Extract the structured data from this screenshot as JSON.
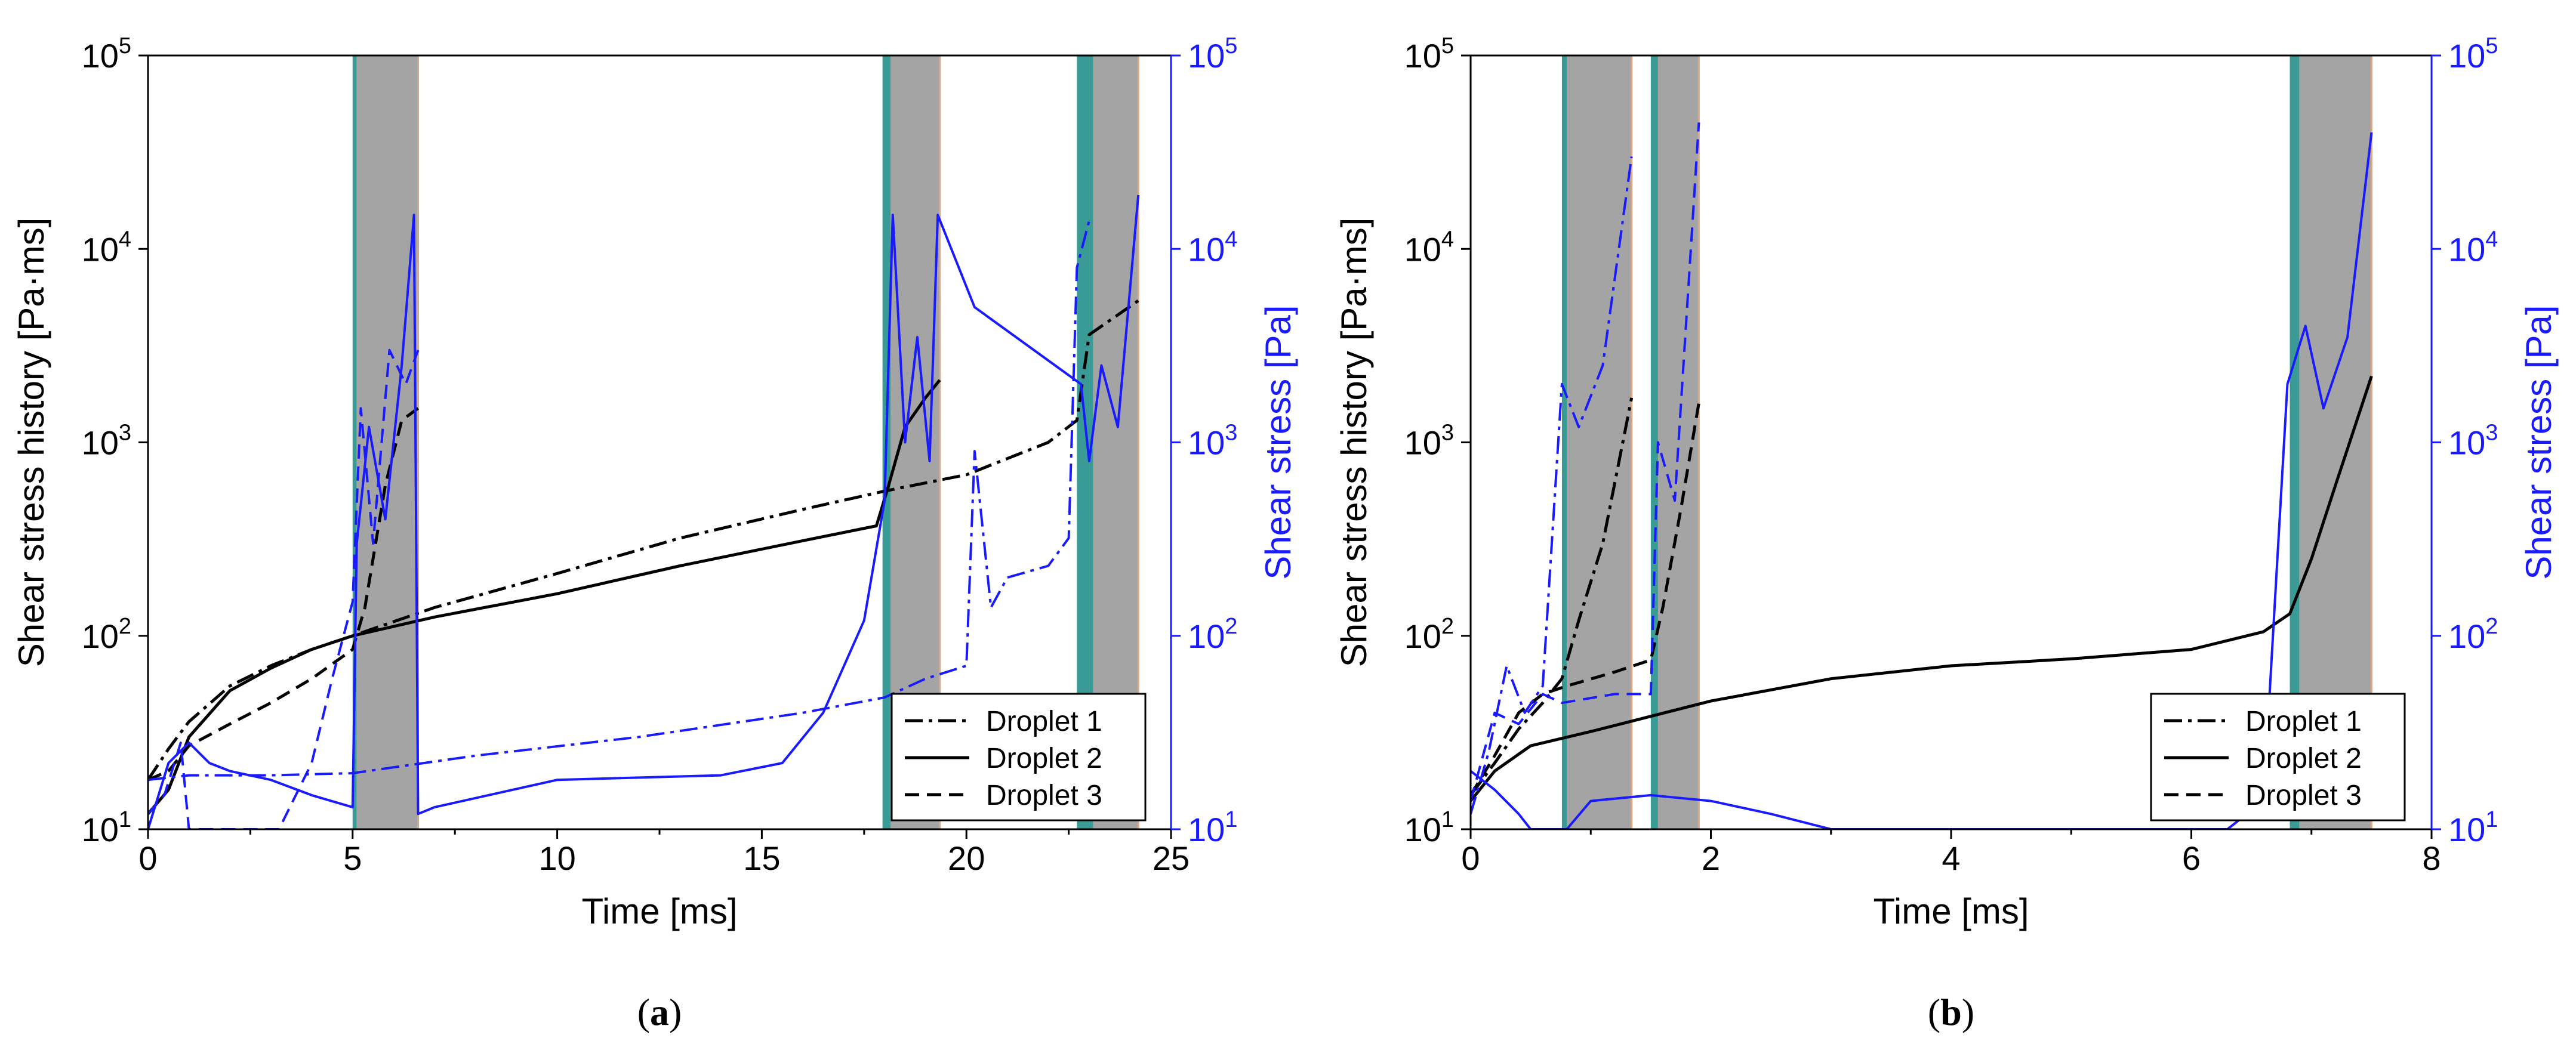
{
  "chart_data": [
    {
      "type": "line",
      "panel_label": "(a)",
      "caption_letter": "a",
      "xlabel": "Time [ms]",
      "ylabel_left": "Shear stress history [Pa·ms]",
      "ylabel_right": "Shear stress [Pa]",
      "xlim": [
        0,
        25
      ],
      "xticks": [
        "0",
        "5",
        "10",
        "15",
        "20",
        "25"
      ],
      "ylim_left": [
        10,
        100000
      ],
      "ylim_right": [
        10,
        100000
      ],
      "scale": "log",
      "left_colors": "#000000",
      "right_color": "#1a1aff",
      "teal_color": "#3a9a96",
      "gray_color": "#a4a4a4",
      "legend": [
        "Droplet 1",
        "Droplet 2",
        "Droplet 3"
      ],
      "shaded_intervals": [
        {
          "teal": [
            5.0,
            5.1
          ],
          "gray": [
            5.1,
            6.6
          ]
        },
        {
          "teal": [
            17.95,
            18.15
          ],
          "gray": [
            18.15,
            19.35
          ]
        },
        {
          "teal": [
            22.7,
            23.1
          ],
          "gray": [
            23.1,
            24.2
          ]
        }
      ],
      "series": [
        {
          "name": "Droplet 1",
          "style": "dashdot",
          "axis": "left",
          "points": [
            [
              0,
              18
            ],
            [
              0.5,
              26
            ],
            [
              1,
              36
            ],
            [
              2,
              55
            ],
            [
              3,
              70
            ],
            [
              4,
              85
            ],
            [
              5,
              100
            ],
            [
              7,
              140
            ],
            [
              10,
              210
            ],
            [
              13,
              320
            ],
            [
              16,
              450
            ],
            [
              18,
              560
            ],
            [
              20,
              680
            ],
            [
              22,
              1000
            ],
            [
              22.7,
              1300
            ],
            [
              23,
              3600
            ],
            [
              24.2,
              5400
            ]
          ]
        },
        {
          "name": "Droplet 2",
          "style": "solid",
          "axis": "left",
          "points": [
            [
              0,
              12
            ],
            [
              0.5,
              16
            ],
            [
              1,
              30
            ],
            [
              2,
              52
            ],
            [
              3,
              68
            ],
            [
              4,
              85
            ],
            [
              5,
              100
            ],
            [
              7,
              125
            ],
            [
              10,
              165
            ],
            [
              13,
              230
            ],
            [
              16,
              310
            ],
            [
              17.8,
              370
            ],
            [
              18.1,
              600
            ],
            [
              18.5,
              1200
            ],
            [
              19,
              1700
            ],
            [
              19.35,
              2100
            ]
          ]
        },
        {
          "name": "Droplet 3",
          "style": "dashed",
          "axis": "left",
          "points": [
            [
              0,
              18
            ],
            [
              0.5,
              20
            ],
            [
              1,
              27
            ],
            [
              2,
              35
            ],
            [
              3,
              45
            ],
            [
              4,
              60
            ],
            [
              5,
              85
            ],
            [
              5.3,
              140
            ],
            [
              5.8,
              600
            ],
            [
              6.2,
              1300
            ],
            [
              6.6,
              1500
            ]
          ]
        },
        {
          "name": "Droplet 1 shear stress",
          "style": "dashdot",
          "axis": "right",
          "points": [
            [
              0,
              18
            ],
            [
              1,
              19
            ],
            [
              3,
              19
            ],
            [
              5,
              19.5
            ],
            [
              8,
              24
            ],
            [
              12,
              30
            ],
            [
              16,
              40
            ],
            [
              18,
              48
            ],
            [
              19,
              60
            ],
            [
              20,
              70
            ],
            [
              20.2,
              900
            ],
            [
              20.6,
              140
            ],
            [
              21,
              200
            ],
            [
              22,
              230
            ],
            [
              22.5,
              320
            ],
            [
              22.7,
              8000
            ],
            [
              23,
              14000
            ]
          ]
        },
        {
          "name": "Droplet 2 shear stress",
          "style": "solid",
          "axis": "right",
          "points": [
            [
              0,
              10
            ],
            [
              0.5,
              22
            ],
            [
              1,
              28
            ],
            [
              1.5,
              22
            ],
            [
              2,
              20
            ],
            [
              3,
              18
            ],
            [
              4,
              15
            ],
            [
              5,
              13
            ],
            [
              5.1,
              300
            ],
            [
              5.4,
              1200
            ],
            [
              5.8,
              400
            ],
            [
              6.2,
              2500
            ],
            [
              6.5,
              15000
            ],
            [
              6.6,
              12
            ],
            [
              7,
              13
            ],
            [
              10,
              18
            ],
            [
              14,
              19
            ],
            [
              15.5,
              22
            ],
            [
              16.5,
              40
            ],
            [
              17.5,
              120
            ],
            [
              18,
              500
            ],
            [
              18.2,
              15000
            ],
            [
              18.5,
              1000
            ],
            [
              18.8,
              3500
            ],
            [
              19.1,
              800
            ],
            [
              19.3,
              15000
            ],
            [
              20.2,
              5000
            ],
            [
              22.8,
              2000
            ],
            [
              23,
              800
            ],
            [
              23.3,
              2500
            ],
            [
              23.7,
              1200
            ],
            [
              24.2,
              19000
            ]
          ]
        },
        {
          "name": "Droplet 3 shear stress",
          "style": "dashed",
          "axis": "right",
          "points": [
            [
              0,
              12
            ],
            [
              0.4,
              15
            ],
            [
              0.8,
              28
            ],
            [
              1,
              10
            ],
            [
              3.2,
              10
            ],
            [
              4,
              22
            ],
            [
              4.5,
              60
            ],
            [
              5,
              150
            ],
            [
              5.2,
              1500
            ],
            [
              5.5,
              300
            ],
            [
              5.9,
              3000
            ],
            [
              6.3,
              2000
            ],
            [
              6.6,
              3000
            ]
          ]
        }
      ]
    },
    {
      "type": "line",
      "panel_label": "(b)",
      "caption_letter": "b",
      "xlabel": "Time [ms]",
      "ylabel_left": "Shear stress history [Pa·ms]",
      "ylabel_right": "Shear stress [Pa]",
      "xlim": [
        0,
        8
      ],
      "xticks": [
        "0",
        "2",
        "4",
        "6",
        "8"
      ],
      "ylim_left": [
        10,
        100000
      ],
      "ylim_right": [
        10,
        100000
      ],
      "scale": "log",
      "left_colors": "#000000",
      "right_color": "#1a1aff",
      "teal_color": "#3a9a96",
      "gray_color": "#a4a4a4",
      "legend": [
        "Droplet 1",
        "Droplet 2",
        "Droplet 3"
      ],
      "shaded_intervals": [
        {
          "teal": [
            0.76,
            0.8
          ],
          "gray": [
            0.8,
            1.34
          ]
        },
        {
          "teal": [
            1.5,
            1.56
          ],
          "gray": [
            1.56,
            1.9
          ]
        },
        {
          "teal": [
            6.82,
            6.9
          ],
          "gray": [
            6.9,
            7.5
          ]
        }
      ],
      "series": [
        {
          "name": "Droplet 1",
          "style": "dashdot",
          "axis": "left",
          "points": [
            [
              0,
              15
            ],
            [
              0.2,
              22
            ],
            [
              0.4,
              33
            ],
            [
              0.6,
              45
            ],
            [
              0.76,
              60
            ],
            [
              0.9,
              120
            ],
            [
              1.1,
              300
            ],
            [
              1.34,
              1700
            ]
          ]
        },
        {
          "name": "Droplet 2",
          "style": "solid",
          "axis": "left",
          "points": [
            [
              0,
              14
            ],
            [
              0.2,
              20
            ],
            [
              0.5,
              27
            ],
            [
              1,
              32
            ],
            [
              2,
              46
            ],
            [
              3,
              60
            ],
            [
              4,
              70
            ],
            [
              5,
              76
            ],
            [
              6,
              85
            ],
            [
              6.6,
              105
            ],
            [
              6.82,
              130
            ],
            [
              7,
              250
            ],
            [
              7.2,
              600
            ],
            [
              7.5,
              2200
            ]
          ]
        },
        {
          "name": "Droplet 3",
          "style": "dashed",
          "axis": "left",
          "points": [
            [
              0,
              15
            ],
            [
              0.2,
              24
            ],
            [
              0.4,
              40
            ],
            [
              0.6,
              50
            ],
            [
              0.8,
              55
            ],
            [
              1.2,
              65
            ],
            [
              1.5,
              75
            ],
            [
              1.6,
              140
            ],
            [
              1.75,
              450
            ],
            [
              1.9,
              1600
            ]
          ]
        },
        {
          "name": "Droplet 1 shear stress",
          "style": "dashdot",
          "axis": "right",
          "points": [
            [
              0,
              12
            ],
            [
              0.15,
              25
            ],
            [
              0.3,
              70
            ],
            [
              0.45,
              40
            ],
            [
              0.6,
              55
            ],
            [
              0.76,
              2000
            ],
            [
              0.9,
              1200
            ],
            [
              1.1,
              2500
            ],
            [
              1.34,
              30000
            ]
          ]
        },
        {
          "name": "Droplet 2 shear stress",
          "style": "solid",
          "axis": "right",
          "points": [
            [
              0,
              20
            ],
            [
              0.2,
              16
            ],
            [
              0.4,
              12
            ],
            [
              0.5,
              10
            ],
            [
              0.8,
              10
            ],
            [
              1,
              14
            ],
            [
              1.5,
              15
            ],
            [
              2,
              14
            ],
            [
              2.5,
              12
            ],
            [
              3,
              10
            ],
            [
              6.3,
              10
            ],
            [
              6.6,
              14
            ],
            [
              6.8,
              2000
            ],
            [
              6.95,
              4000
            ],
            [
              7.1,
              1500
            ],
            [
              7.3,
              3500
            ],
            [
              7.5,
              40000
            ]
          ]
        },
        {
          "name": "Droplet 3 shear stress",
          "style": "dashed",
          "axis": "right",
          "points": [
            [
              0,
              14
            ],
            [
              0.2,
              40
            ],
            [
              0.4,
              35
            ],
            [
              0.6,
              50
            ],
            [
              0.76,
              45
            ],
            [
              1.2,
              50
            ],
            [
              1.5,
              50
            ],
            [
              1.56,
              1000
            ],
            [
              1.7,
              500
            ],
            [
              1.9,
              45000
            ]
          ]
        }
      ]
    }
  ]
}
